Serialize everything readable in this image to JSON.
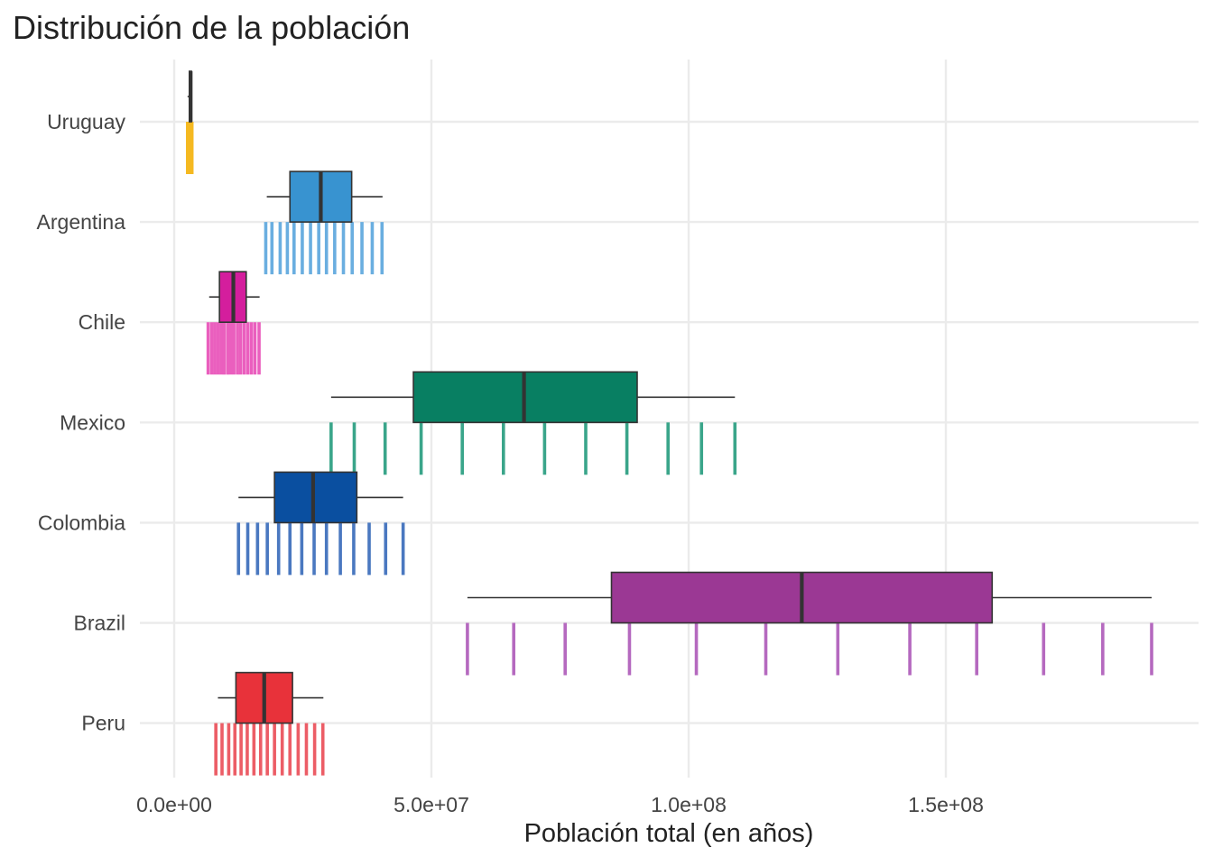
{
  "chart_data": {
    "type": "box",
    "title": "Distribución de la población",
    "xlabel": "Población total (en años)",
    "ylabel": "",
    "xlim": [
      -3000000,
      199000000
    ],
    "grid": true,
    "legend": "none",
    "x_ticks": [
      {
        "value": 0,
        "label": "0.0e+00"
      },
      {
        "value": 50000000,
        "label": "5.0e+07"
      },
      {
        "value": 100000000,
        "label": "1.0e+08"
      },
      {
        "value": 150000000,
        "label": "1.5e+08"
      }
    ],
    "categories": [
      "Uruguay",
      "Argentina",
      "Chile",
      "Mexico",
      "Colombia",
      "Brazil",
      "Peru"
    ],
    "series": [
      {
        "country": "Uruguay",
        "color": "#f5b921",
        "box_color": "#f5b921",
        "min": 2600000,
        "q1": 2950000,
        "median": 3200000,
        "q3": 3350000,
        "max": 3450000,
        "rug": [
          2600000,
          2750000,
          2850000,
          2950000,
          3050000,
          3150000,
          3250000,
          3350000,
          3450000
        ]
      },
      {
        "country": "Argentina",
        "color": "#6aaee0",
        "box_color": "#3893d0",
        "min": 18000000,
        "q1": 22500000,
        "median": 28500000,
        "q3": 34500000,
        "max": 40500000,
        "rug": [
          17800000,
          19000000,
          20600000,
          22000000,
          23300000,
          24900000,
          26500000,
          28100000,
          29600000,
          31200000,
          32900000,
          34600000,
          36500000,
          38500000,
          40400000
        ]
      },
      {
        "country": "Chile",
        "color": "#ea5fbe",
        "box_color": "#d41e9d",
        "min": 6800000,
        "q1": 8800000,
        "median": 11500000,
        "q3": 14000000,
        "max": 16600000,
        "rug": [
          6600000,
          7300000,
          7900000,
          8500000,
          9100000,
          9700000,
          10400000,
          11000000,
          11600000,
          12300000,
          12900000,
          13600000,
          14300000,
          15000000,
          15700000,
          16500000
        ]
      },
      {
        "country": "Mexico",
        "color": "#3aa58a",
        "box_color": "#087f62",
        "min": 30500000,
        "q1": 46500000,
        "median": 68000000,
        "q3": 90000000,
        "max": 109000000,
        "rug": [
          30500000,
          35000000,
          41000000,
          48000000,
          56000000,
          64000000,
          72000000,
          80000000,
          88000000,
          96000000,
          102500000,
          109000000
        ]
      },
      {
        "country": "Colombia",
        "color": "#4a78c0",
        "box_color": "#0a4fa0",
        "min": 12500000,
        "q1": 19500000,
        "median": 27000000,
        "q3": 35500000,
        "max": 44500000,
        "rug": [
          12500000,
          14300000,
          16200000,
          18100000,
          20300000,
          22500000,
          24800000,
          27200000,
          29600000,
          32300000,
          34900000,
          37900000,
          41100000,
          44500000
        ]
      },
      {
        "country": "Brazil",
        "color": "#b569bf",
        "box_color": "#9b3894",
        "min": 57000000,
        "q1": 85000000,
        "median": 122000000,
        "q3": 159000000,
        "max": 190000000,
        "rug": [
          57000000,
          66000000,
          76000000,
          88500000,
          101500000,
          115000000,
          129000000,
          143000000,
          156000000,
          169000000,
          180500000,
          190000000
        ]
      },
      {
        "country": "Peru",
        "color": "#ec5d66",
        "box_color": "#e8323a",
        "min": 8500000,
        "q1": 12000000,
        "median": 17500000,
        "q3": 23000000,
        "max": 29000000,
        "rug": [
          8100000,
          9300000,
          10600000,
          11800000,
          13000000,
          14200000,
          15500000,
          16800000,
          18100000,
          19500000,
          21000000,
          22500000,
          24100000,
          25700000,
          27300000,
          28900000
        ]
      }
    ]
  }
}
